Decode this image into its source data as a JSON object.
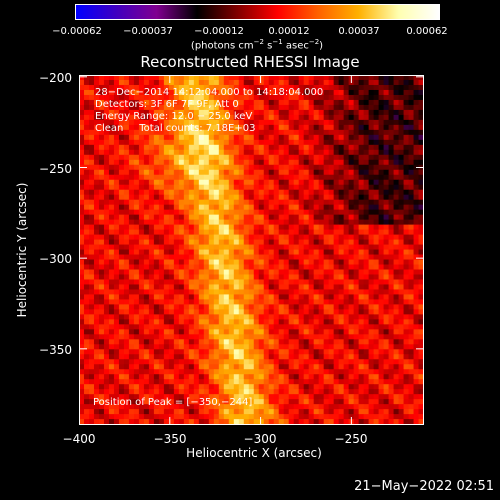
{
  "chart_data": {
    "type": "heatmap",
    "title": "Reconstructed RHESSI Image",
    "xlabel": "Heliocentric X (arcsec)",
    "ylabel": "Heliocentric Y (arcsec)",
    "xlim": [
      -400,
      -210
    ],
    "ylim": [
      -392,
      -199
    ],
    "xticks": [
      -400,
      -350,
      -300,
      -250
    ],
    "xtick_labels": [
      "−400",
      "−350",
      "−300",
      "−250"
    ],
    "yticks": [
      -200,
      -250,
      -300,
      -350
    ],
    "ytick_labels": [
      "−200",
      "−250",
      "−300",
      "−350"
    ],
    "colorbar": {
      "min": -0.00062,
      "max": 0.00062,
      "tick_values": [
        -0.00062,
        -0.00037,
        -0.00012,
        0.00012,
        0.00037,
        0.00062
      ],
      "tick_labels": [
        "−0.00062",
        "−0.00037",
        "−0.00012",
        "0.00012",
        "0.00037",
        "0.00062"
      ],
      "unit_parts": [
        "(photons cm",
        "−2",
        " s",
        "−1",
        " asec",
        "−2",
        ")"
      ],
      "colors": [
        "#0000ff",
        "#4000c0",
        "#800090",
        "#000000",
        "#800000",
        "#ff0000",
        "#ff6000",
        "#ffb000",
        "#ffffb0",
        "#ffffff"
      ]
    },
    "annotations": [
      "28−Dec−2014 14:12:04.000 to 14:18:04.000",
      "Detectors: 3F 6F 7F 9F, Att 0",
      "Energy Range: 12.0 − 25.0 keV",
      "Clean     Total counts: 7.18E+03"
    ],
    "peak_label": "Position of Peak = [−350,−244]",
    "peak": [
      -350,
      -244
    ],
    "grid": false
  },
  "footer": {
    "date": "21−May−2022 02:51"
  }
}
